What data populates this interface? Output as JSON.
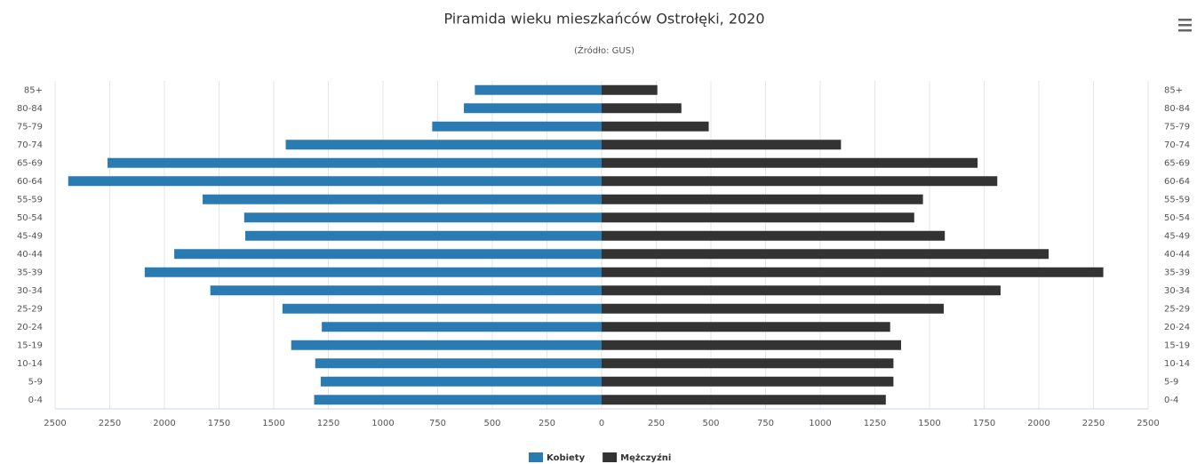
{
  "chart_data": {
    "type": "pyramid",
    "title": "Piramida wieku mieszkańców Ostrołęki, 2020",
    "subtitle": "(Źródło: GUS)",
    "categories": [
      "85+",
      "80-84",
      "75-79",
      "70-74",
      "65-69",
      "60-64",
      "55-59",
      "50-54",
      "45-49",
      "40-44",
      "35-39",
      "30-34",
      "25-29",
      "20-24",
      "15-19",
      "10-14",
      "5-9",
      "0-4"
    ],
    "series": [
      {
        "name": "Kobiety",
        "color": "#2b7bb3",
        "values": [
          -580,
          -630,
          -775,
          -1445,
          -2260,
          -2440,
          -1825,
          -1635,
          -1630,
          -1955,
          -2090,
          -1790,
          -1460,
          -1280,
          -1420,
          -1310,
          -1285,
          -1315
        ]
      },
      {
        "name": "Mężczyźni",
        "color": "#333333",
        "values": [
          255,
          365,
          490,
          1095,
          1720,
          1810,
          1470,
          1430,
          1570,
          2045,
          2295,
          1825,
          1565,
          1320,
          1370,
          1335,
          1335,
          1300
        ]
      }
    ],
    "xlim": [
      -2500,
      2500
    ],
    "xticks": [
      {
        "value": -2500,
        "label": "2500"
      },
      {
        "value": -2250,
        "label": "2250"
      },
      {
        "value": -2000,
        "label": "2000"
      },
      {
        "value": -1750,
        "label": "1750"
      },
      {
        "value": -1500,
        "label": "1500"
      },
      {
        "value": -1250,
        "label": "1250"
      },
      {
        "value": -1000,
        "label": "1000"
      },
      {
        "value": -750,
        "label": "750"
      },
      {
        "value": -500,
        "label": "500"
      },
      {
        "value": -250,
        "label": "250"
      },
      0,
      250,
      500,
      750,
      1000,
      1250,
      1500,
      1750,
      2000,
      2250,
      2500
    ],
    "grid": true
  }
}
